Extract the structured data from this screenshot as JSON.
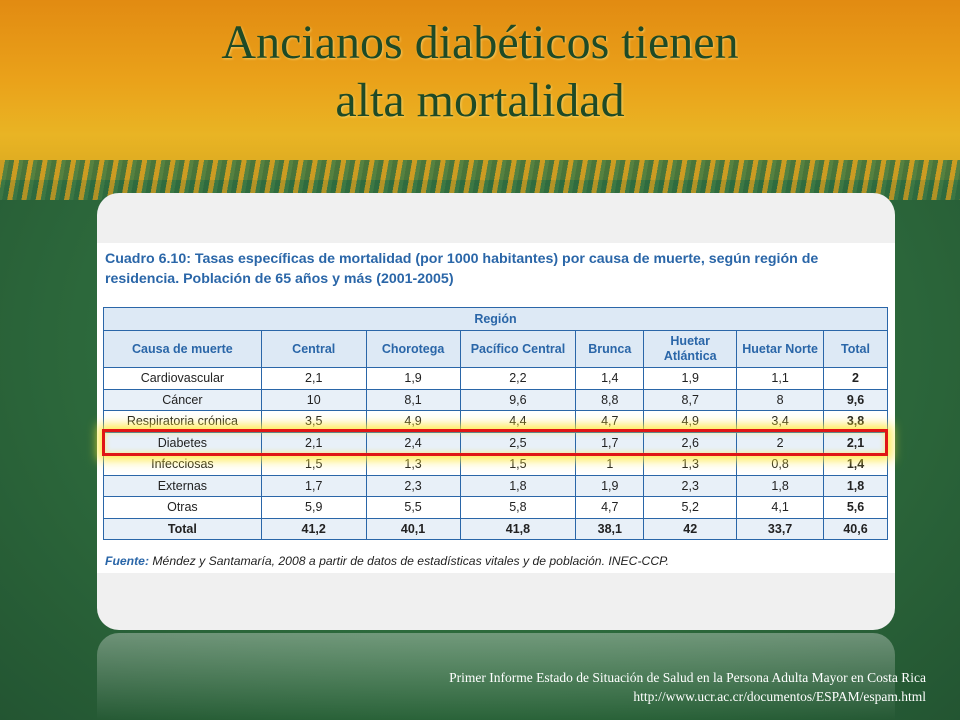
{
  "slide": {
    "title_line1": "Ancianos diabéticos tienen",
    "title_line2": "alta mortalidad"
  },
  "table_doc": {
    "caption": "Cuadro 6.10: Tasas específicas de mortalidad (por 1000 habitantes) por causa de muerte, según región de residencia. Población de 65 años y más (2001-2005)",
    "region_header": "Región",
    "columns": [
      "Causa de muerte",
      "Central",
      "Chorotega",
      "Pacífico Central",
      "Brunca",
      "Huetar Atlántica",
      "Huetar Norte",
      "Total"
    ],
    "rows": [
      {
        "cause": "Cardiovascular",
        "values": [
          "2,1",
          "1,9",
          "2,2",
          "1,4",
          "1,9",
          "1,1",
          "2"
        ]
      },
      {
        "cause": "Cáncer",
        "values": [
          "10",
          "8,1",
          "9,6",
          "8,8",
          "8,7",
          "8",
          "9,6"
        ]
      },
      {
        "cause": "Respiratoria crónica",
        "values": [
          "3,5",
          "4,9",
          "4,4",
          "4,7",
          "4,9",
          "3,4",
          "3,8"
        ]
      },
      {
        "cause": "Diabetes",
        "values": [
          "2,1",
          "2,4",
          "2,5",
          "1,7",
          "2,6",
          "2",
          "2,1"
        ]
      },
      {
        "cause": "Infecciosas",
        "values": [
          "1,5",
          "1,3",
          "1,5",
          "1",
          "1,3",
          "0,8",
          "1,4"
        ]
      },
      {
        "cause": "Externas",
        "values": [
          "1,7",
          "2,3",
          "1,8",
          "1,9",
          "2,3",
          "1,8",
          "1,8"
        ]
      },
      {
        "cause": "Otras",
        "values": [
          "5,9",
          "5,5",
          "5,8",
          "4,7",
          "5,2",
          "4,1",
          "5,6"
        ]
      }
    ],
    "total_row": {
      "cause": "Total",
      "values": [
        "41,2",
        "40,1",
        "41,8",
        "38,1",
        "42",
        "33,7",
        "40,6"
      ]
    },
    "source_label": "Fuente:",
    "source_text": "Méndez y Santamaría, 2008 a partir de datos de estadísticas vitales y de población. INEC-CCP."
  },
  "footer": {
    "line1": "Primer Informe Estado de Situación de Salud en la Persona Adulta Mayor en Costa Rica",
    "line2": "http://www.ucr.ac.cr/documentos/ESPAM/espam.html"
  },
  "colors": {
    "title": "#1f4a26",
    "table_blue": "#2a66a8",
    "highlight": "#e01515"
  }
}
